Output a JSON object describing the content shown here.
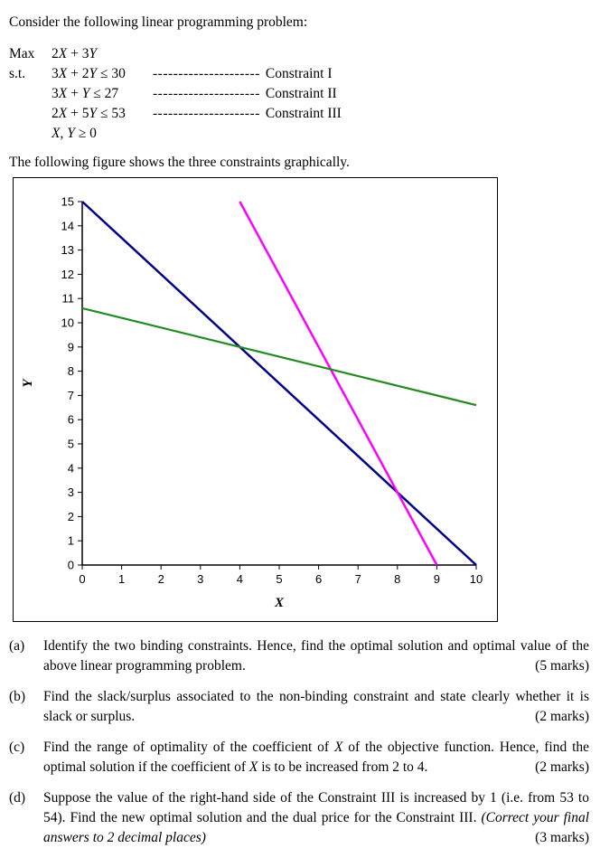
{
  "intro": "Consider the following linear programming problem:",
  "lp": {
    "max_label": "Max",
    "objective": "2X + 3Y",
    "st_label": "s.t.",
    "constraints": [
      {
        "expr": "3X + 2Y ≤ 30",
        "dashes": "---------------------",
        "name": "Constraint I"
      },
      {
        "expr": "3X + Y ≤ 27",
        "dashes": "---------------------",
        "name": "Constraint II"
      },
      {
        "expr": "2X + 5Y ≤ 53",
        "dashes": "---------------------",
        "name": "Constraint III"
      }
    ],
    "nonnegativity": "X, Y ≥ 0"
  },
  "figure_caption": "The following figure shows the three constraints graphically.",
  "chart_data": {
    "type": "line",
    "title": "",
    "xlabel": "X",
    "ylabel": "Y",
    "xlim": [
      0,
      10
    ],
    "ylim": [
      0,
      15
    ],
    "x_ticks": [
      0,
      1,
      2,
      3,
      4,
      5,
      6,
      7,
      8,
      9,
      10
    ],
    "y_ticks": [
      0,
      1,
      2,
      3,
      4,
      5,
      6,
      7,
      8,
      9,
      10,
      11,
      12,
      13,
      14,
      15
    ],
    "grid": false,
    "legend": "none",
    "series": [
      {
        "name": "Constraint I: 3X + 2Y = 30",
        "color": "#00008B",
        "stroke_width": 2.5,
        "points": [
          [
            0,
            15
          ],
          [
            10,
            0
          ]
        ]
      },
      {
        "name": "Constraint II: 3X + Y = 27",
        "color": "#FF00FF",
        "stroke_width": 2.5,
        "points": [
          [
            4,
            15
          ],
          [
            9,
            0
          ]
        ]
      },
      {
        "name": "Constraint III: 2X + 5Y = 53",
        "color": "#228B22",
        "stroke_width": 2.2,
        "points": [
          [
            0,
            10.6
          ],
          [
            10,
            6.6
          ]
        ]
      }
    ]
  },
  "questions": [
    {
      "label": "(a)",
      "text": "Identify the two binding constraints. Hence, find the optimal solution and optimal value of the above linear programming problem.",
      "marks": "(5 marks)"
    },
    {
      "label": "(b)",
      "text": "Find the slack/surplus associated to the non-binding constraint and state clearly whether it is slack or surplus.",
      "marks": "(2 marks)"
    },
    {
      "label": "(c)",
      "text": "Find the range of optimality of the coefficient of X of the objective function. Hence, find the optimal solution if the coefficient of X is to be increased from 2 to 4.",
      "marks": "(2 marks)"
    },
    {
      "label": "(d)",
      "text": "Suppose the value of the right-hand side of the Constraint III is increased by 1 (i.e. from 53 to 54). Find the new optimal solution and the dual price for the Constraint III.",
      "note": "(Correct your final answers to 2 decimal places)",
      "marks": "(3 marks)"
    }
  ]
}
